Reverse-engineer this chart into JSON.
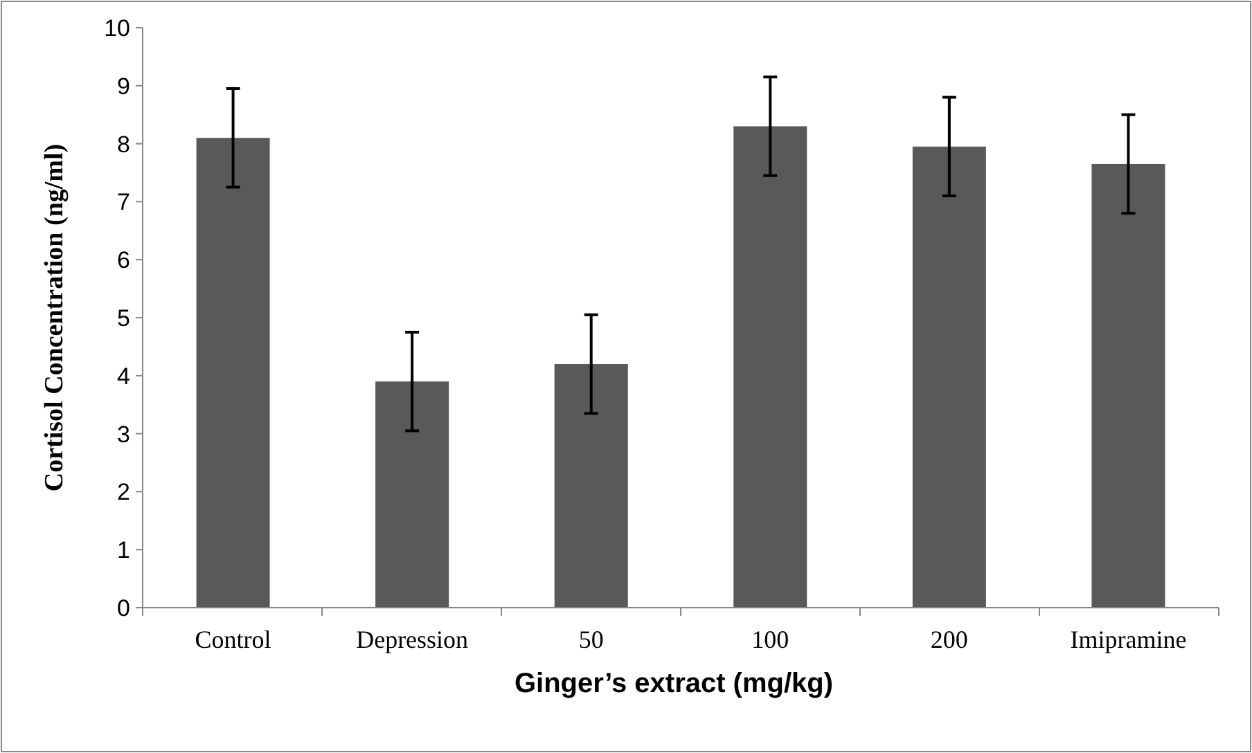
{
  "chart_data": {
    "type": "bar",
    "xlabel": "Ginger’s extract (mg/kg)",
    "ylabel": "Cortisol Concentration (ng/ml)",
    "categories": [
      "Control",
      "Depression",
      "50",
      "100",
      "200",
      "Imipramine"
    ],
    "values": [
      8.1,
      3.9,
      4.2,
      8.3,
      7.95,
      7.65
    ],
    "errors": [
      0.85,
      0.85,
      0.85,
      0.85,
      0.85,
      0.85
    ],
    "color": "#595959",
    "ylim": [
      0,
      10
    ],
    "yticks": [
      0,
      1,
      2,
      3,
      4,
      5,
      6,
      7,
      8,
      9,
      10
    ],
    "grid": false
  }
}
